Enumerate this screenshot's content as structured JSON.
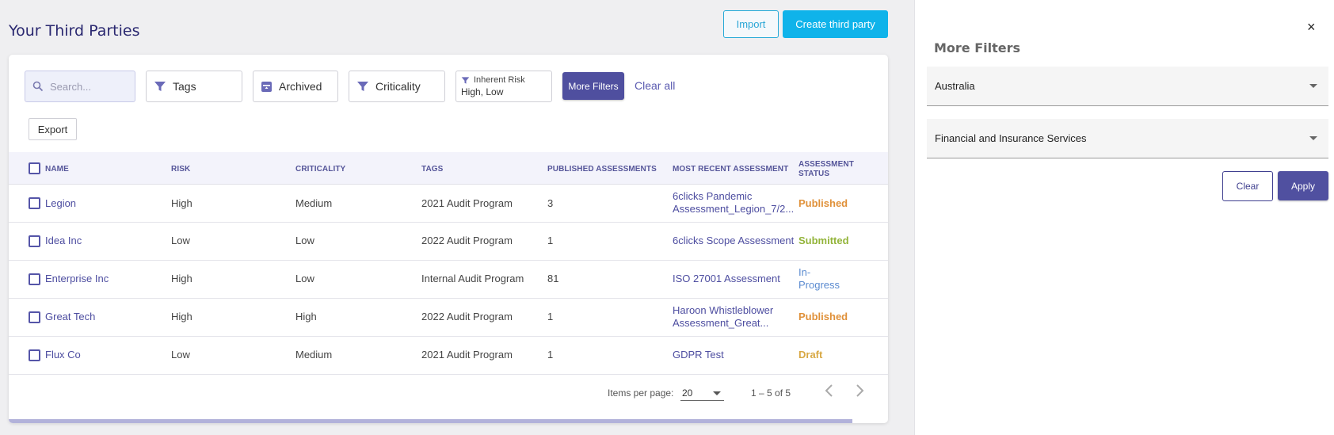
{
  "header": {
    "title": "Your Third Parties",
    "import_label": "Import",
    "create_label": "Create third party"
  },
  "filters": {
    "search_placeholder": "Search...",
    "tags_label": "Tags",
    "archived_label": "Archived",
    "criticality_label": "Criticality",
    "inherent_risk_label": "Inherent Risk",
    "inherent_risk_value": "High, Low",
    "more_filters_label": "More Filters",
    "clear_all_label": "Clear all",
    "export_label": "Export"
  },
  "table": {
    "columns": [
      "NAME",
      "RISK",
      "CRITICALITY",
      "TAGS",
      "PUBLISHED ASSESSMENTS",
      "MOST RECENT ASSESSMENT",
      "ASSESSMENT",
      "STATUS"
    ],
    "rows": [
      {
        "name": "Legion",
        "risk": "High",
        "criticality": "Medium",
        "tags": "2021 Audit Program",
        "published": "3",
        "recent_1": "6clicks Pandemic",
        "recent_2": "Assessment_Legion_7/2...",
        "status": "Published"
      },
      {
        "name": "Idea Inc",
        "risk": "Low",
        "criticality": "Low",
        "tags": "2022 Audit Program",
        "published": "1",
        "recent_1": "6clicks Scope Assessment",
        "recent_2": "",
        "status": "Submitted"
      },
      {
        "name": "Enterprise Inc",
        "risk": "High",
        "criticality": "Low",
        "tags": "Internal Audit Program",
        "published": "81",
        "recent_1": "ISO 27001 Assessment",
        "recent_2": "",
        "status_1": "In-",
        "status_2": "Progress"
      },
      {
        "name": "Great Tech",
        "risk": "High",
        "criticality": "High",
        "tags": "2022 Audit Program",
        "published": "1",
        "recent_1": "Haroon Whistleblower",
        "recent_2": "Assessment_Great...",
        "status": "Published"
      },
      {
        "name": "Flux Co",
        "risk": "Low",
        "criticality": "Medium",
        "tags": "2021 Audit Program",
        "published": "1",
        "recent_1": "GDPR Test",
        "recent_2": "",
        "status": "Draft"
      }
    ]
  },
  "pagination": {
    "items_per_page_label": "Items per page:",
    "items_per_page": "20",
    "range": "1 – 5 of 5"
  },
  "panel": {
    "title": "More Filters",
    "close": "×",
    "country": "Australia",
    "industry": "Financial and Insurance Services",
    "clear_label": "Clear",
    "apply_label": "Apply"
  },
  "colors": {
    "accent": "#4f4f9f",
    "primary_button": "#0fb3ea",
    "published": "#e0913a",
    "submitted": "#93b43a",
    "in_progress": "#5b8bd0",
    "draft": "#d8a844"
  }
}
